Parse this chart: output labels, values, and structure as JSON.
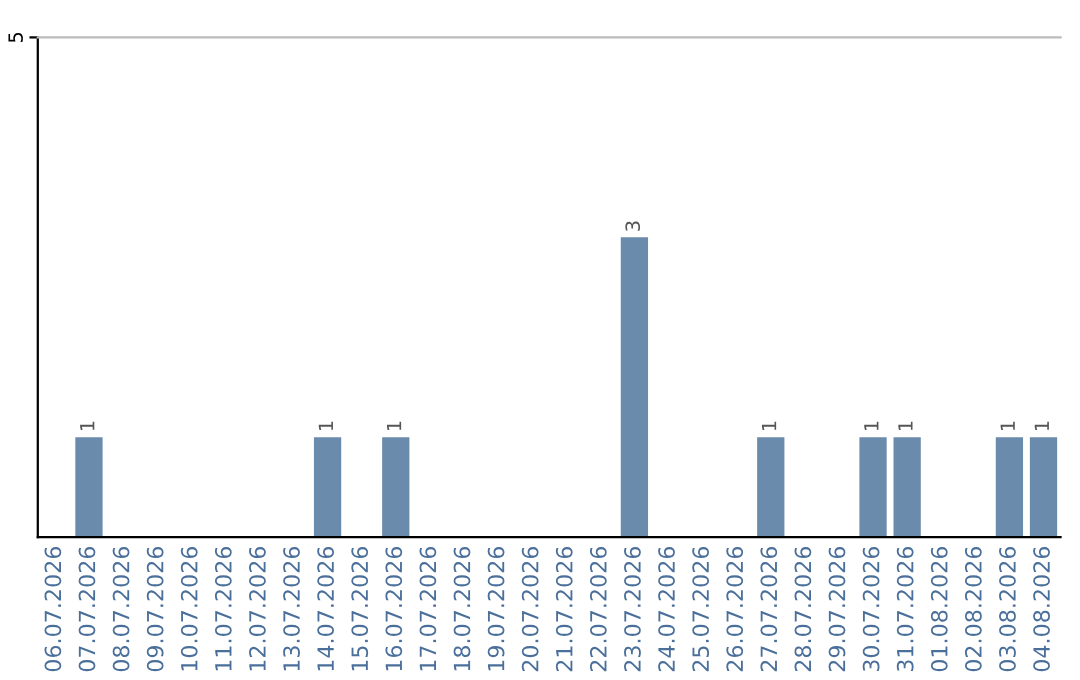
{
  "chart_data": {
    "type": "bar",
    "categories": [
      "06.07.2026",
      "07.07.2026",
      "08.07.2026",
      "09.07.2026",
      "10.07.2026",
      "11.07.2026",
      "12.07.2026",
      "13.07.2026",
      "14.07.2026",
      "15.07.2026",
      "16.07.2026",
      "17.07.2026",
      "18.07.2026",
      "19.07.2026",
      "20.07.2026",
      "21.07.2026",
      "22.07.2026",
      "23.07.2026",
      "24.07.2026",
      "25.07.2026",
      "26.07.2026",
      "27.07.2026",
      "28.07.2026",
      "29.07.2026",
      "30.07.2026",
      "31.07.2026",
      "01.08.2026",
      "02.08.2026",
      "03.08.2026",
      "04.08.2026"
    ],
    "values": [
      0,
      1,
      0,
      0,
      0,
      0,
      0,
      0,
      1,
      0,
      1,
      0,
      0,
      0,
      0,
      0,
      0,
      3,
      0,
      0,
      0,
      1,
      0,
      0,
      1,
      1,
      0,
      0,
      1,
      1
    ],
    "value_labels": [
      null,
      "1",
      null,
      null,
      null,
      null,
      null,
      null,
      "1",
      null,
      "1",
      null,
      null,
      null,
      null,
      null,
      null,
      "3",
      null,
      null,
      null,
      "1",
      null,
      null,
      "1",
      "1",
      null,
      null,
      "1",
      "1"
    ],
    "color": "#6a8bab",
    "ylim": [
      0,
      5
    ],
    "yticks": [
      5
    ]
  }
}
